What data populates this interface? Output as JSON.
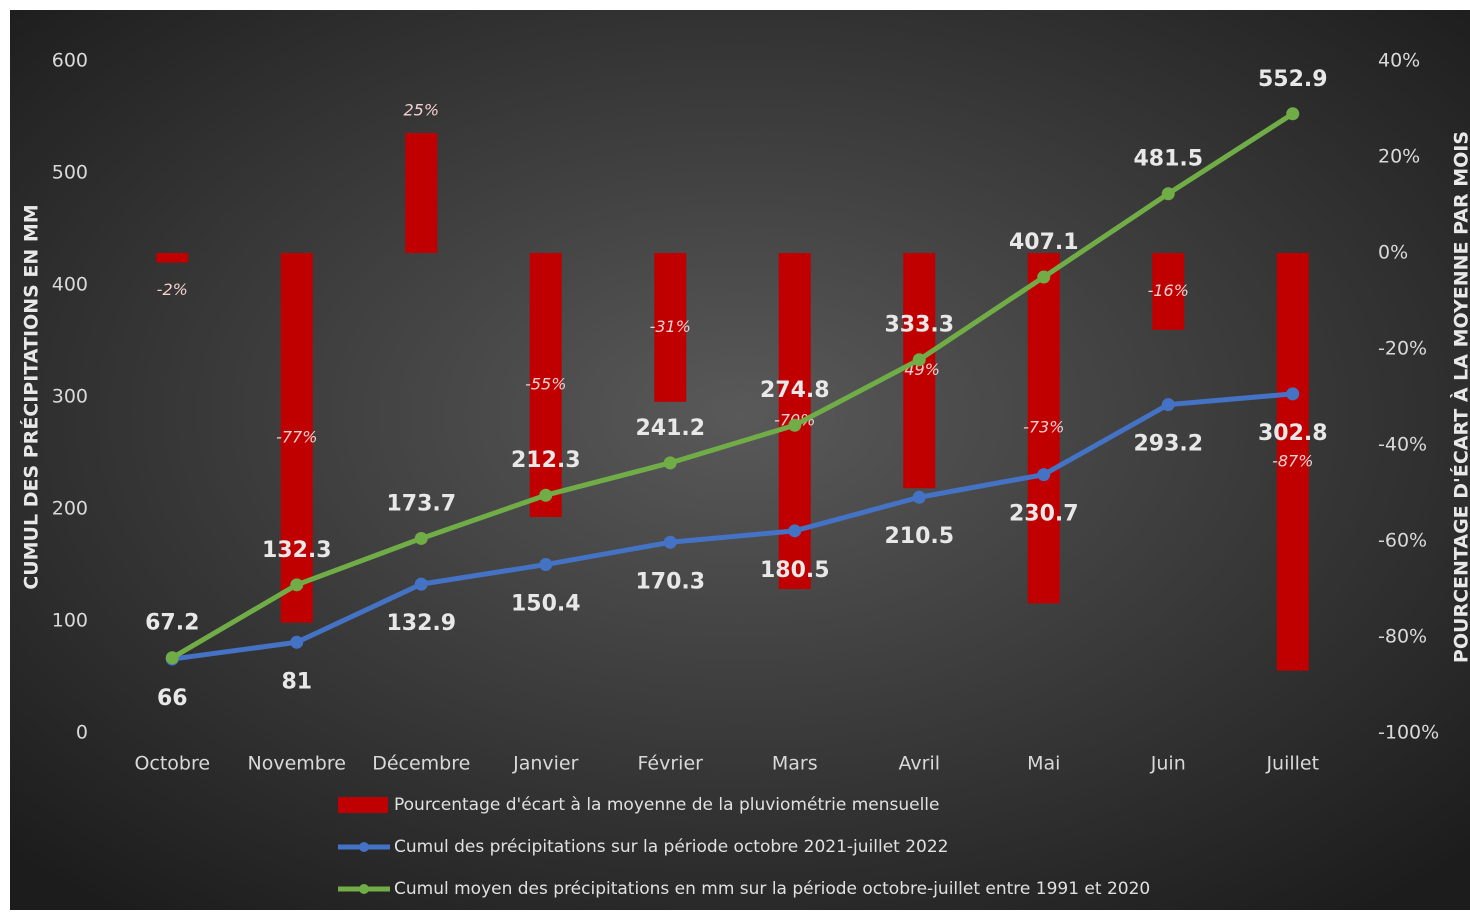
{
  "chart_data": {
    "type": "combo",
    "categories": [
      "Octobre",
      "Novembre",
      "Décembre",
      "Janvier",
      "Février",
      "Mars",
      "Avril",
      "Mai",
      "Juin",
      "Juillet"
    ],
    "ylabel": "CUMUL DES PRÉCIPITATIONS EN MM",
    "y2label": "POURCENTAGE D'ÉCART À LA MOYENNE PAR MOIS",
    "ylim": [
      0,
      600
    ],
    "yticks": [
      0,
      100,
      200,
      300,
      400,
      500,
      600
    ],
    "y2lim": [
      -100,
      40
    ],
    "y2ticks": [
      {
        "value": -100,
        "label": "-100%"
      },
      {
        "value": -80,
        "label": "-80%"
      },
      {
        "value": -60,
        "label": "-60%"
      },
      {
        "value": -40,
        "label": "-40%"
      },
      {
        "value": -20,
        "label": "-20%"
      },
      {
        "value": 0,
        "label": "0%"
      },
      {
        "value": 20,
        "label": "20%"
      },
      {
        "value": 40,
        "label": "40%"
      }
    ],
    "grid": false,
    "legend": "bottom",
    "series": [
      {
        "name": "Pourcentage d'écart à la moyenne de la pluviométrie mensuelle",
        "type": "bar",
        "axis": "y2",
        "color": "#c00000",
        "values": [
          -2,
          -77,
          25,
          -55,
          -31,
          -70,
          -49,
          -73,
          -16,
          -87
        ],
        "value_labels": [
          "-2%",
          "-77%",
          "25%",
          "-55%",
          "-31%",
          "-70%",
          "-49%",
          "-73%",
          "-16%",
          "-87%"
        ]
      },
      {
        "name": "Cumul des précipitations sur la période octobre 2021-juillet 2022",
        "type": "line",
        "color": "#4472c4",
        "values": [
          66,
          81,
          132.9,
          150.4,
          170.3,
          180.5,
          210.5,
          230.7,
          293.2,
          302.8
        ]
      },
      {
        "name": "Cumul moyen des précipitations en mm sur la période octobre-juillet entre 1991 et 2020",
        "type": "line",
        "color": "#70ad47",
        "values": [
          67.2,
          132.3,
          173.7,
          212.3,
          241.2,
          274.8,
          333.3,
          407.1,
          481.5,
          552.9
        ]
      }
    ]
  }
}
